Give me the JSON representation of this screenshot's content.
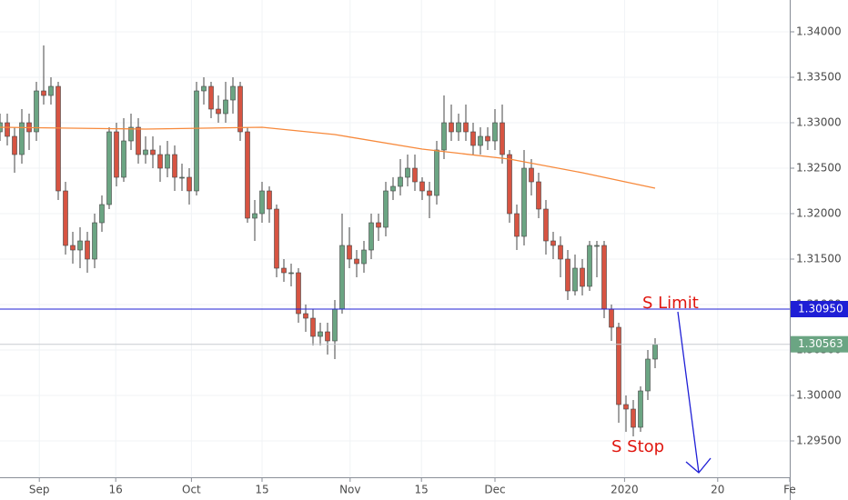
{
  "chart_data": {
    "type": "candlestick",
    "x": [
      0,
      1,
      2,
      3,
      4,
      5,
      6,
      7,
      8,
      9,
      10,
      11,
      12,
      13,
      14,
      15,
      16,
      17,
      18,
      19,
      20,
      21,
      22,
      23,
      24,
      25,
      26,
      27,
      28,
      29,
      30,
      31,
      32,
      33,
      34,
      35,
      36,
      37,
      38,
      39,
      40,
      41,
      42,
      43,
      44,
      45,
      46,
      47,
      48,
      49,
      50,
      51,
      52,
      53,
      54,
      55,
      56,
      57,
      58,
      59,
      60,
      61,
      62,
      63,
      64,
      65,
      66,
      67,
      68,
      69,
      70,
      71,
      72,
      73,
      74,
      75,
      76,
      77,
      78,
      79,
      80,
      81,
      82,
      83,
      84,
      85,
      86,
      87,
      88,
      89,
      90
    ],
    "open": [
      1.329,
      1.33,
      1.3285,
      1.3265,
      1.33,
      1.329,
      1.3335,
      1.333,
      1.334,
      1.3225,
      1.3165,
      1.316,
      1.317,
      1.315,
      1.319,
      1.321,
      1.329,
      1.324,
      1.328,
      1.3295,
      1.3265,
      1.327,
      1.3265,
      1.325,
      1.3265,
      1.324,
      1.324,
      1.3225,
      1.3335,
      1.334,
      1.3315,
      1.331,
      1.3325,
      1.334,
      1.329,
      1.3195,
      1.32,
      1.3225,
      1.3205,
      1.314,
      1.3135,
      1.3135,
      1.309,
      1.3085,
      1.3065,
      1.307,
      1.306,
      1.3095,
      1.3165,
      1.315,
      1.3145,
      1.316,
      1.319,
      1.3185,
      1.3225,
      1.323,
      1.324,
      1.325,
      1.3235,
      1.3225,
      1.322,
      1.327,
      1.33,
      1.329,
      1.33,
      1.329,
      1.3275,
      1.3285,
      1.328,
      1.33,
      1.3265,
      1.32,
      1.3175,
      1.325,
      1.3235,
      1.3205,
      1.317,
      1.3165,
      1.315,
      1.3115,
      1.314,
      1.312,
      1.3165,
      1.3165,
      1.3095,
      1.3075,
      1.299,
      1.2985,
      1.2965,
      1.3005,
      1.304
    ],
    "high": [
      1.331,
      1.331,
      1.3295,
      1.3315,
      1.331,
      1.3345,
      1.3385,
      1.335,
      1.3345,
      1.3235,
      1.318,
      1.3185,
      1.318,
      1.32,
      1.322,
      1.3295,
      1.33,
      1.3305,
      1.331,
      1.3305,
      1.3285,
      1.3285,
      1.3275,
      1.328,
      1.3275,
      1.3255,
      1.325,
      1.3345,
      1.335,
      1.3345,
      1.333,
      1.3345,
      1.335,
      1.3345,
      1.3295,
      1.3215,
      1.3235,
      1.323,
      1.321,
      1.315,
      1.3145,
      1.314,
      1.31,
      1.3095,
      1.308,
      1.308,
      1.3105,
      1.32,
      1.3185,
      1.316,
      1.317,
      1.32,
      1.32,
      1.3235,
      1.324,
      1.326,
      1.3265,
      1.3265,
      1.324,
      1.3235,
      1.328,
      1.333,
      1.332,
      1.331,
      1.332,
      1.33,
      1.3295,
      1.3295,
      1.3315,
      1.332,
      1.327,
      1.321,
      1.327,
      1.326,
      1.3245,
      1.3215,
      1.318,
      1.3175,
      1.316,
      1.3155,
      1.315,
      1.317,
      1.317,
      1.317,
      1.31,
      1.308,
      1.3,
      1.2995,
      1.301,
      1.305,
      1.3063
    ],
    "low": [
      1.328,
      1.3275,
      1.3245,
      1.3255,
      1.327,
      1.328,
      1.332,
      1.332,
      1.3215,
      1.3155,
      1.3145,
      1.314,
      1.3135,
      1.314,
      1.318,
      1.3205,
      1.323,
      1.3235,
      1.327,
      1.3255,
      1.3255,
      1.325,
      1.3235,
      1.324,
      1.3225,
      1.3225,
      1.321,
      1.322,
      1.332,
      1.3305,
      1.33,
      1.33,
      1.331,
      1.328,
      1.319,
      1.317,
      1.319,
      1.319,
      1.313,
      1.3125,
      1.312,
      1.308,
      1.307,
      1.3055,
      1.3055,
      1.3045,
      1.304,
      1.309,
      1.314,
      1.313,
      1.3135,
      1.315,
      1.317,
      1.3175,
      1.3215,
      1.322,
      1.323,
      1.3225,
      1.3215,
      1.3195,
      1.321,
      1.326,
      1.328,
      1.328,
      1.328,
      1.3265,
      1.3265,
      1.327,
      1.327,
      1.3255,
      1.319,
      1.316,
      1.3165,
      1.322,
      1.3195,
      1.3155,
      1.315,
      1.313,
      1.3105,
      1.311,
      1.311,
      1.3115,
      1.313,
      1.3085,
      1.306,
      1.297,
      1.296,
      1.2955,
      1.296,
      1.2995,
      1.303
    ],
    "close": [
      1.33,
      1.3285,
      1.3265,
      1.33,
      1.329,
      1.3335,
      1.333,
      1.334,
      1.3225,
      1.3165,
      1.316,
      1.317,
      1.315,
      1.319,
      1.321,
      1.329,
      1.324,
      1.328,
      1.3295,
      1.3265,
      1.327,
      1.3265,
      1.325,
      1.3265,
      1.324,
      1.324,
      1.3225,
      1.3335,
      1.334,
      1.3315,
      1.331,
      1.3325,
      1.334,
      1.329,
      1.3195,
      1.32,
      1.3225,
      1.3205,
      1.314,
      1.3135,
      1.3135,
      1.309,
      1.3085,
      1.3065,
      1.307,
      1.306,
      1.3095,
      1.3165,
      1.315,
      1.3145,
      1.316,
      1.319,
      1.3185,
      1.3225,
      1.323,
      1.324,
      1.325,
      1.3235,
      1.3225,
      1.322,
      1.327,
      1.33,
      1.329,
      1.33,
      1.329,
      1.3275,
      1.3285,
      1.328,
      1.33,
      1.3265,
      1.32,
      1.3175,
      1.325,
      1.3235,
      1.3205,
      1.317,
      1.3165,
      1.315,
      1.3115,
      1.314,
      1.312,
      1.3165,
      1.3165,
      1.3095,
      1.3075,
      1.299,
      1.2985,
      1.2965,
      1.3005,
      1.304,
      1.3056
    ],
    "up_color": "#6ba583",
    "down_color": "#d75442",
    "overlay": {
      "type": "line",
      "color": "#f7893b",
      "x": [
        0,
        20,
        36,
        46,
        58,
        70,
        80,
        90
      ],
      "values": [
        1.3295,
        1.3293,
        1.3295,
        1.3287,
        1.3271,
        1.326,
        1.3245,
        1.3228
      ]
    },
    "hline": {
      "value": 1.3095,
      "label": "1.30950",
      "color": "#1f1fd6"
    },
    "last_price": {
      "value": 1.30563,
      "label": "1.30563",
      "color": "#6ba583"
    },
    "annotations": [
      {
        "text": "S Limit",
        "color": "#e0160f"
      },
      {
        "text": "S Stop",
        "color": "#e0160f"
      }
    ],
    "xlim": [
      0,
      108.5
    ],
    "ylim": [
      1.291,
      1.3435
    ],
    "xticks": [
      {
        "value": 5.4,
        "label": "Sep"
      },
      {
        "value": 15.9,
        "label": "16"
      },
      {
        "value": 26.3,
        "label": "Oct"
      },
      {
        "value": 36,
        "label": "15"
      },
      {
        "value": 48.1,
        "label": "Nov"
      },
      {
        "value": 57.9,
        "label": "15"
      },
      {
        "value": 68,
        "label": "Dec"
      },
      {
        "value": 85.8,
        "label": "2020"
      },
      {
        "value": 98.6,
        "label": "20"
      },
      {
        "value": 108.5,
        "label": "Fe"
      }
    ],
    "yticks": [
      {
        "value": 1.295,
        "label": "1.29500"
      },
      {
        "value": 1.3,
        "label": "1.30000"
      },
      {
        "value": 1.305,
        "label": "1.30500"
      },
      {
        "value": 1.31,
        "label": "1.31000"
      },
      {
        "value": 1.315,
        "label": "1.31500"
      },
      {
        "value": 1.32,
        "label": "1.32000"
      },
      {
        "value": 1.325,
        "label": "1.32500"
      },
      {
        "value": 1.33,
        "label": "1.33000"
      },
      {
        "value": 1.335,
        "label": "1.33500"
      },
      {
        "value": 1.34,
        "label": "1.34000"
      }
    ],
    "grid": true
  }
}
